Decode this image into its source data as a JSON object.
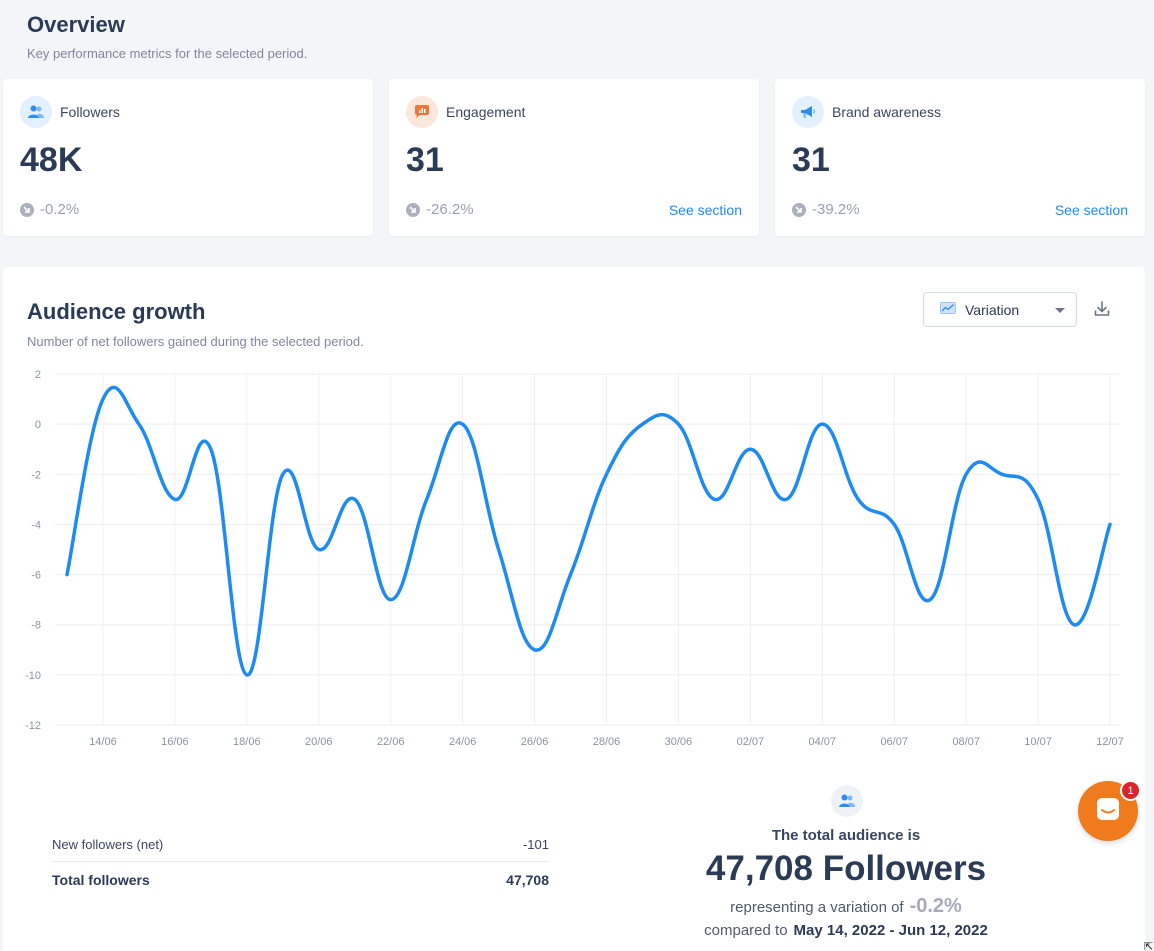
{
  "overview": {
    "title": "Overview",
    "subtitle": "Key performance metrics for the selected period."
  },
  "kpis": [
    {
      "label": "Followers",
      "value": "48K",
      "change": "-0.2%",
      "link": "",
      "icon": "users-icon",
      "color": "#2d8cf0"
    },
    {
      "label": "Engagement",
      "value": "31",
      "change": "-26.2%",
      "link": "See section",
      "icon": "chat-bubble-icon",
      "color": "#f2763a"
    },
    {
      "label": "Brand awareness",
      "value": "31",
      "change": "-39.2%",
      "link": "See section",
      "icon": "megaphone-icon",
      "color": "#2d8cf0"
    }
  ],
  "growth": {
    "title": "Audience growth",
    "subtitle": "Number of net followers gained during the selected period.",
    "select_label": "Variation"
  },
  "chart_data": {
    "type": "line",
    "ylim": [
      -12,
      2
    ],
    "yticks": [
      "2",
      "0",
      "-2",
      "-4",
      "-6",
      "-8",
      "-10",
      "-12"
    ],
    "xtick_labels": [
      "14/06",
      "16/06",
      "18/06",
      "20/06",
      "22/06",
      "24/06",
      "26/06",
      "28/06",
      "30/06",
      "02/07",
      "04/07",
      "06/07",
      "08/07",
      "10/07",
      "12/07"
    ],
    "x": [
      "13/06",
      "14/06",
      "15/06",
      "16/06",
      "17/06",
      "18/06",
      "19/06",
      "20/06",
      "21/06",
      "22/06",
      "23/06",
      "24/06",
      "25/06",
      "26/06",
      "27/06",
      "28/06",
      "29/06",
      "30/06",
      "01/07",
      "02/07",
      "03/07",
      "04/07",
      "05/07",
      "06/07",
      "07/07",
      "08/07",
      "09/07",
      "10/07",
      "11/07",
      "12/07"
    ],
    "series": [
      {
        "values": [
          -6,
          1,
          0,
          -3,
          -1,
          -10,
          -2,
          -5,
          -3,
          -7,
          -3,
          0,
          -5,
          -9,
          -6,
          -2,
          0,
          0,
          -3,
          -1,
          -3,
          0,
          -3,
          -4,
          -7,
          -2,
          -2,
          -3,
          -8,
          -4
        ],
        "color": "#1d8bf1"
      }
    ],
    "grid": true
  },
  "stats": {
    "new_label": "New followers (net)",
    "new_value": "-101",
    "total_label": "Total followers",
    "total_value": "47,708"
  },
  "audience": {
    "intro": "The total audience is",
    "total": "47,708 Followers",
    "variation_text": "representing a variation of",
    "variation_pct": "-0.2%",
    "compare_text": "compared to",
    "range": "May 14, 2022 - Jun 12, 2022"
  },
  "chat": {
    "badge": "1"
  }
}
